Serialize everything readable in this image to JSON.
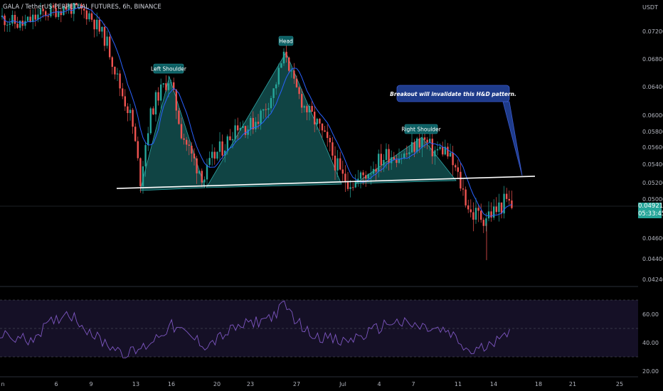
{
  "symbol_line": "GALA / TetherUS PERPETUAL FUTURES, 6h, BINANCE",
  "axis_unit": "USDT",
  "current_price": "0.04921",
  "countdown": "05:33:45",
  "colors": {
    "up": "#26a69a",
    "down": "#ef5350",
    "ma": "#2962ff",
    "pattern_fill": "#1d7b7b",
    "label_bg": "#0d5f63",
    "note_bg": "#1e3b8a",
    "rsi": "#7e57c2",
    "neckline": "#ffffff"
  },
  "annotations": {
    "left_shoulder": "Left Shoulder",
    "head": "Head",
    "right_shoulder": "Right Shoulder",
    "note": "Breakout will invalidate this H&D pattern."
  },
  "chart_data": {
    "type": "candlestick",
    "y_axis": {
      "unit": "USDT",
      "ticks": [
        0.072,
        0.068,
        0.064,
        0.06,
        0.058,
        0.056,
        0.054,
        0.052,
        0.05,
        0.046,
        0.044,
        0.0424
      ],
      "tick_labels": [
        "0.07200",
        "0.06800",
        "0.06400",
        "0.06000",
        "0.05800",
        "0.05600",
        "0.05400",
        "0.05200",
        "0.05000",
        "0.04600",
        "0.04400",
        "0.04240"
      ]
    },
    "x_axis": {
      "tick_labels": [
        "n",
        "6",
        "9",
        "13",
        "16",
        "20",
        "23",
        "27",
        "Jul",
        "4",
        "7",
        "11",
        "14",
        "18",
        "21",
        "25"
      ]
    },
    "pattern": "head-and-shoulders",
    "neckline": {
      "start": 0.0513,
      "end": 0.0527
    },
    "pattern_points": [
      {
        "name": "Left Shoulder",
        "price": 0.0654
      },
      {
        "name": "Head",
        "price": 0.0694
      },
      {
        "name": "Right Shoulder",
        "price": 0.0571
      }
    ],
    "last_price": 0.04921,
    "rsi": {
      "tick_labels": [
        "60.00",
        "40.00",
        "20.00"
      ],
      "upper": 70,
      "lower": 30
    }
  }
}
